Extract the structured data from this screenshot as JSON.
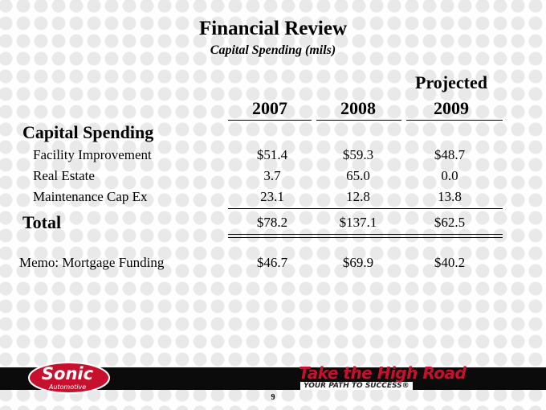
{
  "header": {
    "title": "Financial Review",
    "subtitle": "Capital Spending (mils)"
  },
  "table": {
    "projected_label": "Projected",
    "years": [
      "2007",
      "2008",
      "2009"
    ],
    "section_label": "Capital Spending",
    "rows": [
      {
        "label": "Facility Improvement",
        "values": [
          "$51.4",
          "$59.3",
          "$48.7"
        ]
      },
      {
        "label": "Real Estate",
        "values": [
          "3.7",
          "65.0",
          "0.0"
        ]
      },
      {
        "label": "Maintenance Cap Ex",
        "values": [
          "23.1",
          "12.8",
          "13.8"
        ]
      }
    ],
    "total": {
      "label": "Total",
      "values": [
        "$78.2",
        "$137.1",
        "$62.5"
      ]
    },
    "memo": {
      "label": "Memo: Mortgage Funding",
      "values": [
        "$46.7",
        "$69.9",
        "$40.2"
      ]
    }
  },
  "footer": {
    "logo_text": "Sonic",
    "logo_subtext": "Automotive",
    "tagline": "Take the High Road",
    "tagline_sub": "YOUR PATH TO SUCCESS",
    "tagline_sub_symbol": "®",
    "page_number": "9",
    "logo_color": "#c8102e",
    "tagline_color": "#c8102e"
  }
}
